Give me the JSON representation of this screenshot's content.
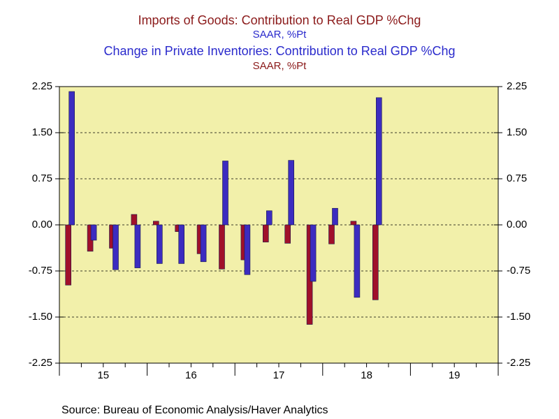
{
  "chart_data": {
    "type": "bar",
    "title": "Imports of Goods: Contribution to Real GDP %Chg",
    "subtitle": "SAAR, %Pt",
    "title2": "Change in Private Inventories: Contribution to Real GDP %Chg",
    "subtitle2": "SAAR, %Pt",
    "source": "Source:  Bureau of Economic Analysis/Haver Analytics",
    "categories": [
      null,
      "15",
      null,
      null,
      null,
      "16",
      null,
      null,
      null,
      "17",
      null,
      null,
      null,
      "18",
      null,
      null,
      null,
      "19",
      null,
      null
    ],
    "series": [
      {
        "name": "Imports of Goods: Contribution to Real GDP %Chg",
        "color": "#a0102a",
        "values": [
          -0.98,
          -0.43,
          -0.38,
          0.17,
          0.06,
          -0.11,
          -0.47,
          -0.72,
          -0.57,
          -0.28,
          -0.3,
          -1.62,
          -0.31,
          0.06,
          -1.22,
          null,
          null,
          null,
          null,
          null
        ]
      },
      {
        "name": "Change in Private Inventories: Contribution to Real GDP %Chg",
        "color": "#3c2cc0",
        "values": [
          2.17,
          -0.25,
          -0.73,
          -0.7,
          -0.63,
          -0.63,
          -0.6,
          1.04,
          -0.81,
          0.23,
          1.05,
          -0.92,
          0.27,
          -1.18,
          2.07,
          null,
          null,
          null,
          null,
          null
        ]
      }
    ],
    "ylim": [
      -2.25,
      2.25
    ],
    "yticks": [
      -2.25,
      {
        "value": -1.5,
        "label": "-1.50"
      },
      -0.75,
      {
        "value": 0,
        "label": "0.00"
      },
      0.75,
      {
        "value": 1.5,
        "label": "1.50"
      },
      2.25
    ],
    "grid": true
  }
}
